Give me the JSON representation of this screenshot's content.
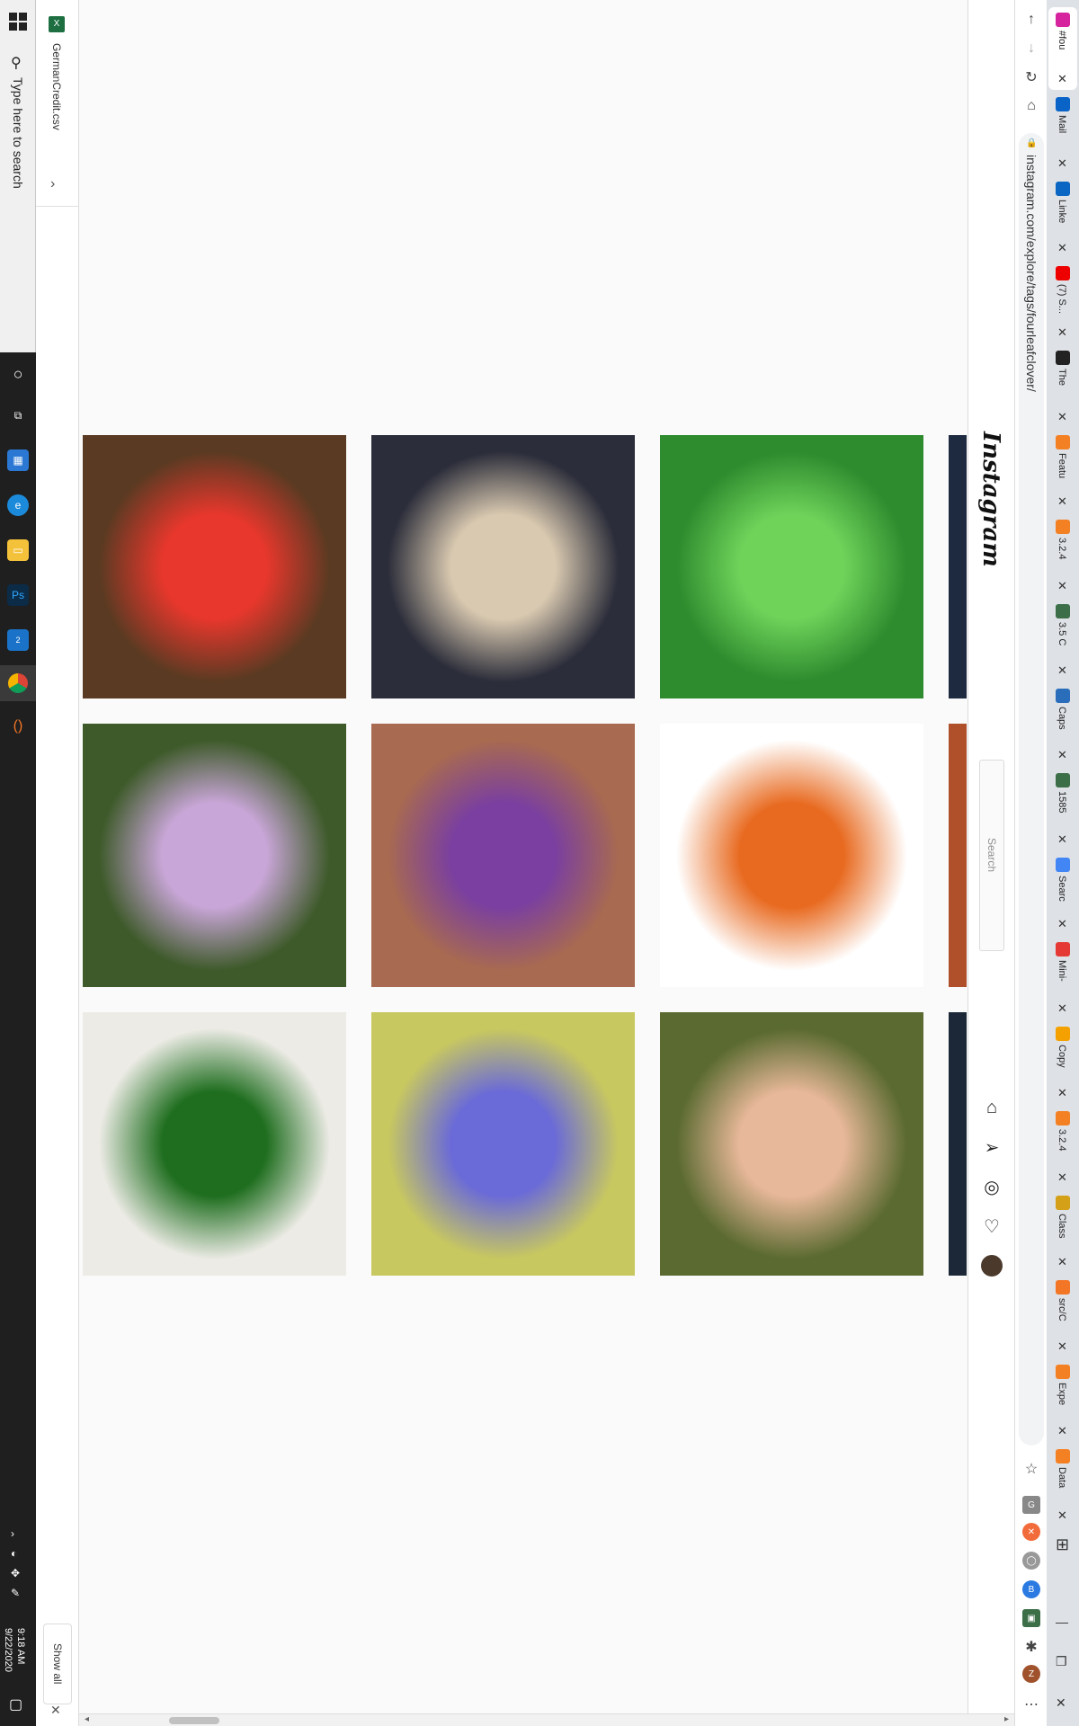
{
  "taskbar": {
    "search_placeholder": "Type here to search",
    "clock_time": "9:18 AM",
    "clock_date": "9/22/2020",
    "edge_badge": "2"
  },
  "downloads": {
    "filename": "GermanCredit.csv",
    "show_all": "Show all"
  },
  "browser": {
    "url": "instagram.com/explore/tags/fourleafclover/",
    "tabs": [
      {
        "title": "#fou",
        "color": "#d6249f"
      },
      {
        "title": "Mail",
        "color": "#0a64c8"
      },
      {
        "title": "Linke",
        "color": "#0a66c2"
      },
      {
        "title": "(7) S...",
        "color": "#e00"
      },
      {
        "title": "The ",
        "color": "#222"
      },
      {
        "title": "Featu",
        "color": "#f48024"
      },
      {
        "title": "3.2.4",
        "color": "#f48024"
      },
      {
        "title": "3.5 C",
        "color": "#3c6e47"
      },
      {
        "title": "Caps",
        "color": "#2a6ebb"
      },
      {
        "title": "1585",
        "color": "#3c6e47"
      },
      {
        "title": "Searc",
        "color": "#4285f4"
      },
      {
        "title": "Mini-",
        "color": "#e53935"
      },
      {
        "title": "Copy",
        "color": "#f4a100"
      },
      {
        "title": "3.2.4",
        "color": "#f48024"
      },
      {
        "title": "Class",
        "color": "#d4a017"
      },
      {
        "title": "src/C",
        "color": "#f37626"
      },
      {
        "title": "Expe",
        "color": "#f48024"
      },
      {
        "title": "Data",
        "color": "#f48024"
      }
    ]
  },
  "instagram": {
    "logo": "Instagram",
    "search_placeholder": "Search"
  },
  "grid": [
    {
      "name": "redhead-card-post",
      "bg": "#5a3a22",
      "accent": "#e8372c"
    },
    {
      "name": "selfie-clover-post",
      "bg": "#2b2d3a",
      "accent": "#d9c9b0"
    },
    {
      "name": "clover-patch-post",
      "bg": "#2e8b2e",
      "accent": "#6fd35a"
    },
    {
      "name": "bikini-post",
      "bg": "#3e5a2a",
      "accent": "#c9a6d8"
    },
    {
      "name": "purple-skirt-post",
      "bg": "#a86a50",
      "accent": "#7a3fa0"
    },
    {
      "name": "fox-drawing-post",
      "bg": "#ffffff",
      "accent": "#e86a20"
    },
    {
      "name": "clover-leaf-post",
      "bg": "#ecebe5",
      "accent": "#1f6e1f"
    },
    {
      "name": "flowers-post",
      "bg": "#c8c860",
      "accent": "#6a6ad8"
    },
    {
      "name": "hand-clover-post",
      "bg": "#5a6a30",
      "accent": "#e8b89a"
    }
  ]
}
